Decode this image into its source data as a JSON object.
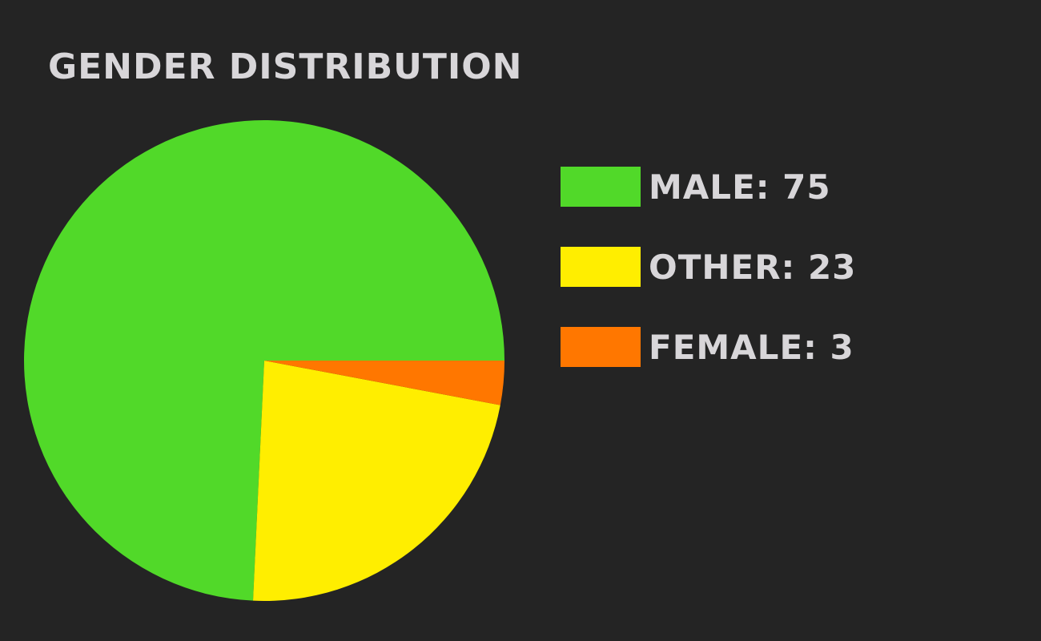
{
  "chart_data": {
    "type": "pie",
    "title": "GENDER DISTRIBUTION",
    "slices": [
      {
        "name": "MALE",
        "value": 75,
        "label": "MALE: 75",
        "color": "#51d929"
      },
      {
        "name": "OTHER",
        "value": 23,
        "label": "OTHER: 23",
        "color": "#ffee00"
      },
      {
        "name": "FEMALE",
        "value": 3,
        "label": "FEMALE: 3",
        "color": "#ff7700"
      }
    ],
    "legend_placement": "right"
  },
  "colors": {
    "background": "#242424",
    "text": "#d8d6d9"
  }
}
